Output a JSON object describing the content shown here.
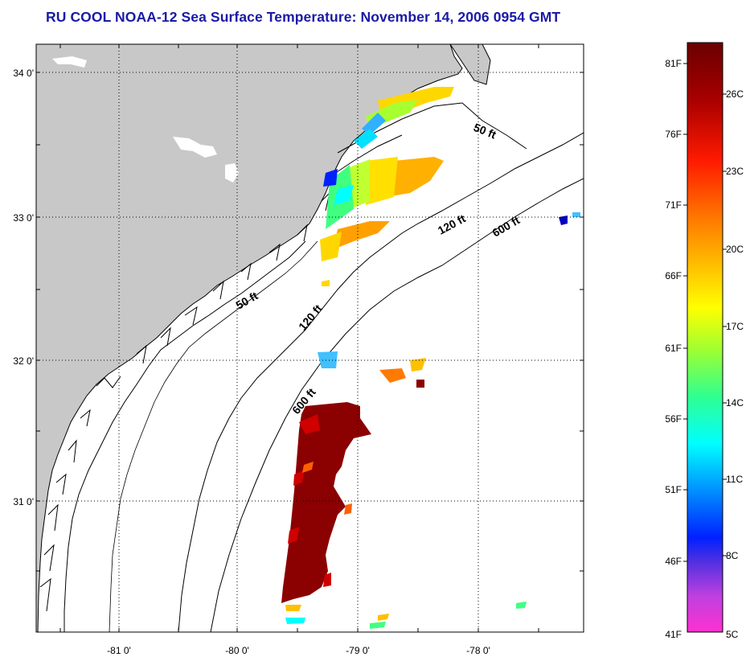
{
  "title": "RU COOL  NOAA-12  Sea Surface Temperature:  November 14, 2006 0954 GMT",
  "map": {
    "lat_ticks": [
      "34 0'",
      "33 0'",
      "32 0'",
      "31 0'"
    ],
    "lon_ticks": [
      "-81 0'",
      "-80 0'",
      "-79 0'",
      "-78 0'"
    ],
    "depth_labels": [
      "50 ft",
      "50 ft",
      "120 ft",
      "120 ft",
      "600 ft",
      "600 ft"
    ],
    "colors": {
      "land": "#c8c8c8",
      "ocean": "#ffffff",
      "grid": "#000000"
    }
  },
  "colorbar": {
    "fahrenheit_labels": [
      "81F",
      "76F",
      "71F",
      "66F",
      "61F",
      "56F",
      "51F",
      "46F",
      "41F"
    ],
    "celsius_labels": [
      "26C",
      "23C",
      "20C",
      "17C",
      "14C",
      "11C",
      "8C",
      "5C"
    ],
    "gradient": [
      "#6a0000",
      "#b40000",
      "#ff0000",
      "#ff8000",
      "#ffc800",
      "#ffff00",
      "#a0ff40",
      "#40ff80",
      "#00ffff",
      "#0090ff",
      "#0000ff",
      "#8040ff",
      "#ff00ff"
    ]
  }
}
